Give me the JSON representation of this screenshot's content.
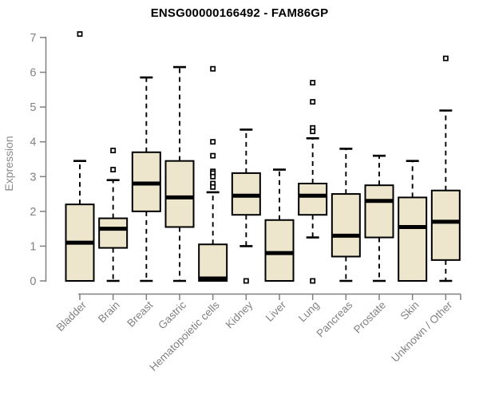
{
  "title": "ENSG00000166492 - FAM86GP",
  "chart_data": {
    "type": "boxplot",
    "title": "ENSG00000166492 - FAM86GP",
    "xlabel": "",
    "ylabel": "Expression",
    "ylim": [
      0,
      7
    ],
    "yticks": [
      0,
      1,
      2,
      3,
      4,
      5,
      6,
      7
    ],
    "grid": false,
    "legend": "none",
    "categories": [
      "Bladder",
      "Brain",
      "Breast",
      "Gastric",
      "Hematopoietic cells",
      "Kidney",
      "Liver",
      "Lung",
      "Pancreas",
      "Prostate",
      "Skin",
      "Unknown / Other"
    ],
    "series": [
      {
        "category": "Bladder",
        "low": 0,
        "q1": 0,
        "median": 1.1,
        "q3": 2.2,
        "high": 3.45,
        "outliers": [
          7.1
        ]
      },
      {
        "category": "Brain",
        "low": 0,
        "q1": 0.95,
        "median": 1.5,
        "q3": 1.8,
        "high": 2.9,
        "outliers": [
          3.75,
          3.2
        ]
      },
      {
        "category": "Breast",
        "low": 0,
        "q1": 2.0,
        "median": 2.8,
        "q3": 3.7,
        "high": 5.85,
        "outliers": []
      },
      {
        "category": "Gastric",
        "low": 0,
        "q1": 1.55,
        "median": 2.4,
        "q3": 3.45,
        "high": 6.15,
        "outliers": []
      },
      {
        "category": "Hematopoietic cells",
        "low": 0,
        "q1": 0,
        "median": 0.07,
        "q3": 1.05,
        "high": 2.55,
        "outliers": [
          6.1,
          4.0,
          3.6,
          3.15,
          3.1,
          3.0,
          2.8,
          2.7
        ]
      },
      {
        "category": "Kidney",
        "low": 1.0,
        "q1": 1.9,
        "median": 2.45,
        "q3": 3.1,
        "high": 4.35,
        "outliers": [
          0.0
        ]
      },
      {
        "category": "Liver",
        "low": 0,
        "q1": 0,
        "median": 0.8,
        "q3": 1.75,
        "high": 3.2,
        "outliers": []
      },
      {
        "category": "Lung",
        "low": 1.25,
        "q1": 1.9,
        "median": 2.45,
        "q3": 2.8,
        "high": 4.1,
        "outliers": [
          5.7,
          5.15,
          4.4,
          4.3,
          0.0
        ]
      },
      {
        "category": "Pancreas",
        "low": 0,
        "q1": 0.7,
        "median": 1.3,
        "q3": 2.5,
        "high": 3.8,
        "outliers": []
      },
      {
        "category": "Prostate",
        "low": 0,
        "q1": 1.25,
        "median": 2.3,
        "q3": 2.75,
        "high": 3.6,
        "outliers": []
      },
      {
        "category": "Skin",
        "low": 0,
        "q1": 0,
        "median": 1.55,
        "q3": 2.4,
        "high": 3.45,
        "outliers": []
      },
      {
        "category": "Unknown / Other",
        "low": 0,
        "q1": 0.6,
        "median": 1.7,
        "q3": 2.6,
        "high": 4.9,
        "outliers": [
          6.4
        ]
      }
    ],
    "colors": {
      "box_fill": "#EDE6CC",
      "box_border": "#000000",
      "median": "#000000",
      "whisker": "#000000",
      "outlier_stroke": "#000000",
      "outlier_fill": "#FFFFFF",
      "axis": "#808080",
      "tick_label": "#828282",
      "title": "#000000",
      "background": "#FFFFFF"
    }
  }
}
